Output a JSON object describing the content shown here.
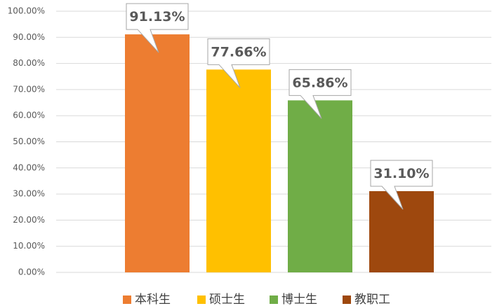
{
  "chart_data": {
    "type": "bar",
    "categories": [
      "本科生",
      "硕士生",
      "博士生",
      "教职工"
    ],
    "values": [
      91.13,
      77.66,
      65.86,
      31.1
    ],
    "value_labels": [
      "91.13%",
      "77.66%",
      "65.86%",
      "31.10%"
    ],
    "colors": [
      "#ed7d31",
      "#ffc000",
      "#70ad47",
      "#9e480e"
    ],
    "ylim": [
      0,
      100
    ],
    "yticks": [
      {
        "value": 0,
        "label": "0.00%"
      },
      {
        "value": 10,
        "label": "10.00%"
      },
      {
        "value": 20,
        "label": "20.00%"
      },
      {
        "value": 30,
        "label": "30.00%"
      },
      {
        "value": 40,
        "label": "40.00%"
      },
      {
        "value": 50,
        "label": "50.00%"
      },
      {
        "value": 60,
        "label": "60.00%"
      },
      {
        "value": 70,
        "label": "70.00%"
      },
      {
        "value": 80,
        "label": "80.00%"
      },
      {
        "value": 90,
        "label": "90.00%"
      },
      {
        "value": 100,
        "label": "100.00%"
      }
    ],
    "grid": true,
    "legend": "bottom"
  }
}
